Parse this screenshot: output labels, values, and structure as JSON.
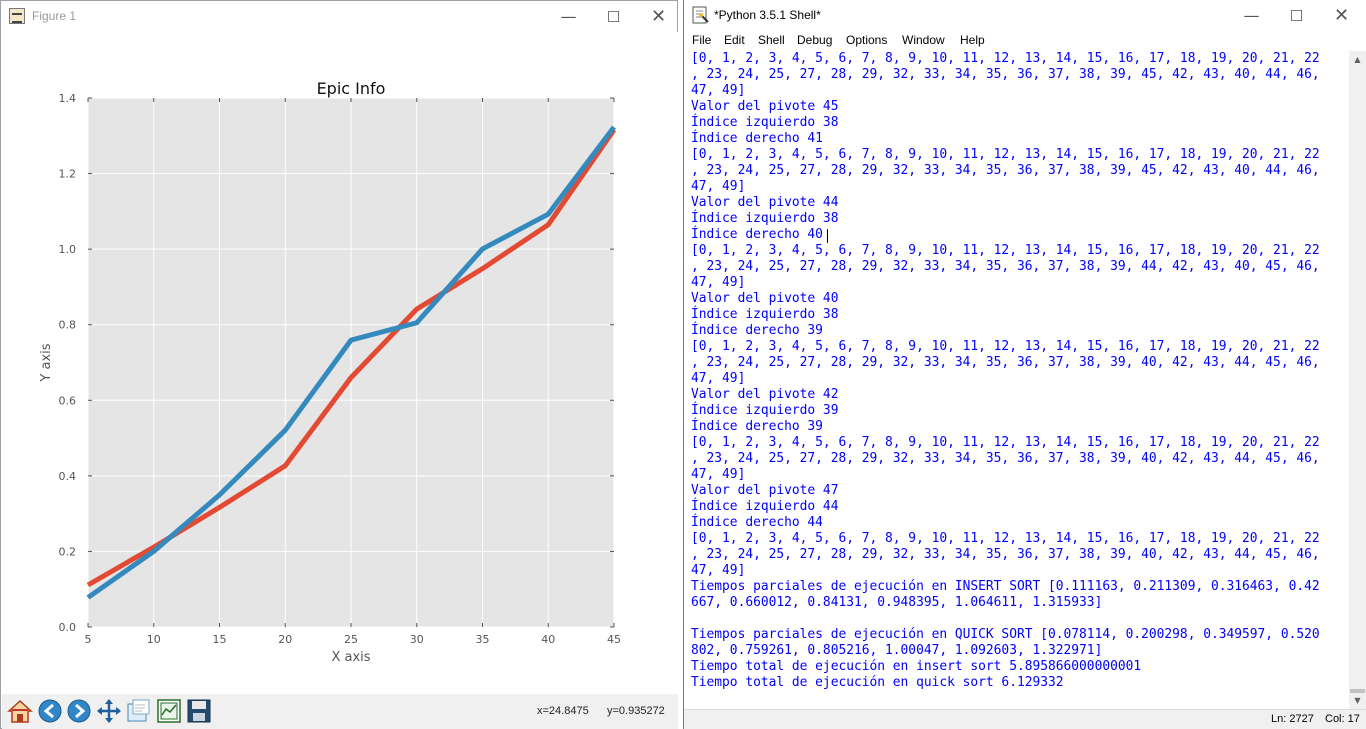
{
  "figure": {
    "title": "Figure 1",
    "coord_x": "x=24.8475",
    "coord_y": "y=0.935272"
  },
  "chart_data": {
    "type": "line",
    "title": "Epic Info",
    "xlabel": "X axis",
    "ylabel": "Y axis",
    "xlim": [
      5,
      45
    ],
    "ylim": [
      0.0,
      1.4
    ],
    "xticks": [
      "5",
      "10",
      "15",
      "20",
      "25",
      "30",
      "35",
      "40",
      "45"
    ],
    "yticks": [
      "0.0",
      "0.2",
      "0.4",
      "0.6",
      "0.8",
      "1.0",
      "1.2",
      "1.4"
    ],
    "grid": true,
    "x": [
      5,
      10,
      15,
      20,
      25,
      30,
      35,
      40,
      45
    ],
    "series": [
      {
        "color": "#e24a33",
        "values": [
          0.111163,
          0.211309,
          0.316463,
          0.42667,
          0.660012,
          0.84131,
          0.948395,
          1.064611,
          1.315933
        ]
      },
      {
        "color": "#348abd",
        "values": [
          0.078114,
          0.200298,
          0.349597,
          0.520802,
          0.759261,
          0.805216,
          1.00047,
          1.092603,
          1.322971
        ]
      }
    ]
  },
  "toolbar_icons": [
    "home-icon",
    "back-arrow-icon",
    "forward-arrow-icon",
    "pan-icon",
    "zoom-icon",
    "subplots-icon",
    "save-icon"
  ],
  "shell": {
    "title": "*Python 3.5.1 Shell*",
    "menus": [
      "File",
      "Edit",
      "Shell",
      "Debug",
      "Options",
      "Window",
      "Help"
    ],
    "lines": [
      "[0, 1, 2, 3, 4, 5, 6, 7, 8, 9, 10, 11, 12, 13, 14, 15, 16, 17, 18, 19, 20, 21, 22",
      ", 23, 24, 25, 27, 28, 29, 32, 33, 34, 35, 36, 37, 38, 39, 45, 42, 43, 40, 44, 46,",
      "47, 49]",
      "Valor del pivote 45",
      "Índice izquierdo 38",
      "Índice derecho 41",
      "[0, 1, 2, 3, 4, 5, 6, 7, 8, 9, 10, 11, 12, 13, 14, 15, 16, 17, 18, 19, 20, 21, 22",
      ", 23, 24, 25, 27, 28, 29, 32, 33, 34, 35, 36, 37, 38, 39, 45, 42, 43, 40, 44, 46,",
      "47, 49]",
      "Valor del pivote 44",
      "Índice izquierdo 38",
      "Índice derecho 40",
      "[0, 1, 2, 3, 4, 5, 6, 7, 8, 9, 10, 11, 12, 13, 14, 15, 16, 17, 18, 19, 20, 21, 22",
      ", 23, 24, 25, 27, 28, 29, 32, 33, 34, 35, 36, 37, 38, 39, 44, 42, 43, 40, 45, 46,",
      "47, 49]",
      "Valor del pivote 40",
      "Índice izquierdo 38",
      "Índice derecho 39",
      "[0, 1, 2, 3, 4, 5, 6, 7, 8, 9, 10, 11, 12, 13, 14, 15, 16, 17, 18, 19, 20, 21, 22",
      ", 23, 24, 25, 27, 28, 29, 32, 33, 34, 35, 36, 37, 38, 39, 40, 42, 43, 44, 45, 46,",
      "47, 49]",
      "Valor del pivote 42",
      "Índice izquierdo 39",
      "Índice derecho 39",
      "[0, 1, 2, 3, 4, 5, 6, 7, 8, 9, 10, 11, 12, 13, 14, 15, 16, 17, 18, 19, 20, 21, 22",
      ", 23, 24, 25, 27, 28, 29, 32, 33, 34, 35, 36, 37, 38, 39, 40, 42, 43, 44, 45, 46,",
      "47, 49]",
      "Valor del pivote 47",
      "Índice izquierdo 44",
      "Índice derecho 44",
      "[0, 1, 2, 3, 4, 5, 6, 7, 8, 9, 10, 11, 12, 13, 14, 15, 16, 17, 18, 19, 20, 21, 22",
      ", 23, 24, 25, 27, 28, 29, 32, 33, 34, 35, 36, 37, 38, 39, 40, 42, 43, 44, 45, 46,",
      "47, 49]",
      "Tiempos parciales de ejecución en INSERT SORT [0.111163, 0.211309, 0.316463, 0.42",
      "667, 0.660012, 0.84131, 0.948395, 1.064611, 1.315933]",
      "",
      "Tiempos parciales de ejecución en QUICK SORT [0.078114, 0.200298, 0.349597, 0.520",
      "802, 0.759261, 0.805216, 1.00047, 1.092603, 1.322971]",
      "Tiempo total de ejecución en insert sort 5.895866000000001",
      "Tiempo total de ejecución en quick sort 6.129332"
    ],
    "status_ln": "Ln: 2727",
    "status_col": "Col: 17"
  }
}
